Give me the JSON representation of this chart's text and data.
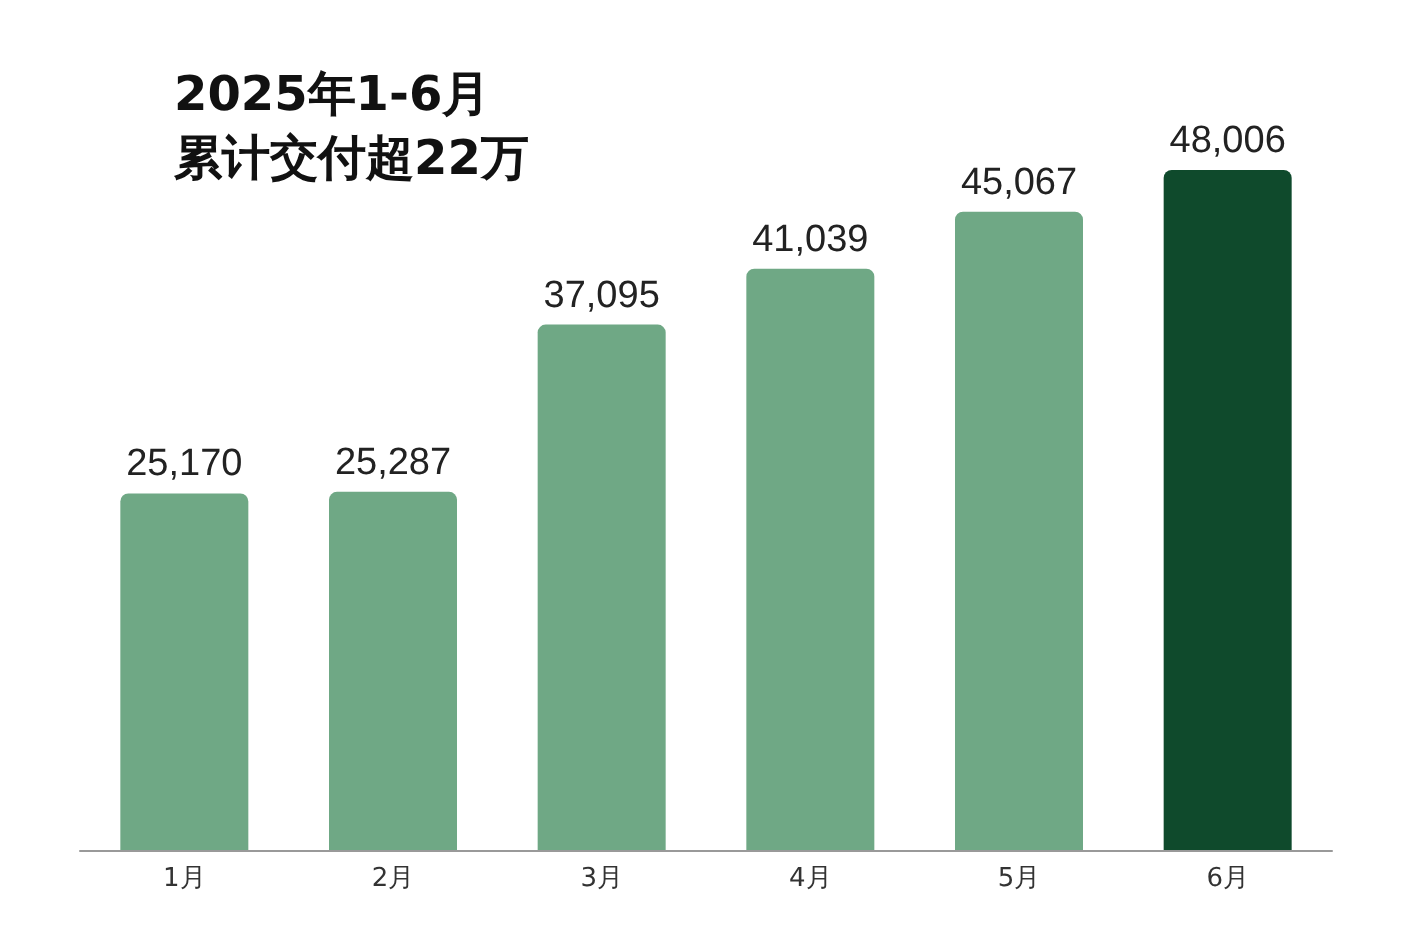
{
  "chart_data": {
    "type": "bar",
    "title": "2025年1-6月",
    "subtitle": "累计交付超22万",
    "categories": [
      "1月",
      "2月",
      "3月",
      "4月",
      "5月",
      "6月"
    ],
    "values": [
      25170,
      25287,
      37095,
      41039,
      45067,
      48006
    ],
    "colors": [
      "#6fa885",
      "#6fa885",
      "#6fa885",
      "#6fa885",
      "#6fa885",
      "#0f4a2c"
    ],
    "value_labels": [
      "25,170",
      "25,287",
      "37,095",
      "41,039",
      "45,067",
      "48,006"
    ]
  }
}
